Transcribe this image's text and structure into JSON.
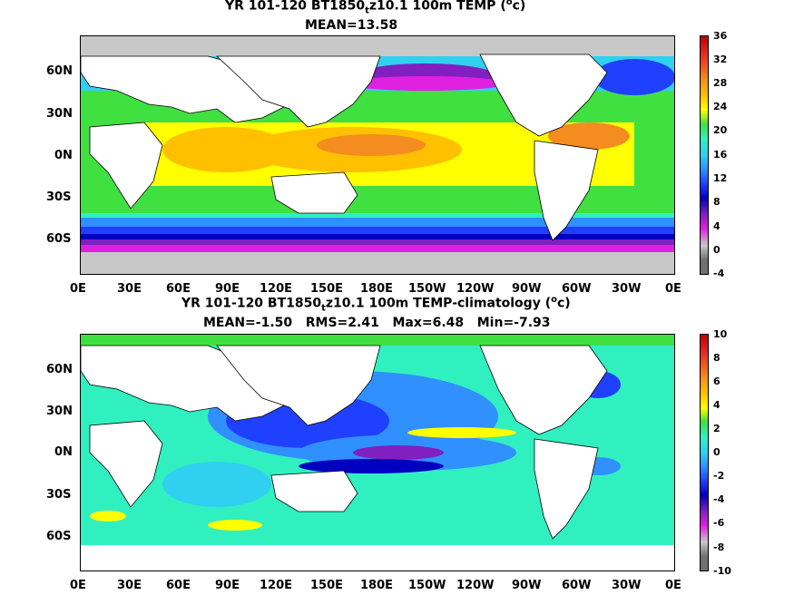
{
  "panel1": {
    "title_pre": "YR 101-120 BT1850",
    "title_sub": "t",
    "title_post": "z10.1 100m TEMP (",
    "title_sup": "o",
    "title_end": "c)",
    "stats": "MEAN=13.58",
    "lat_labels": [
      "60N",
      "30N",
      "0N",
      "30S",
      "60S"
    ],
    "lon_labels": [
      "0E",
      "30E",
      "60E",
      "90E",
      "120E",
      "150E",
      "180E",
      "150W",
      "120W",
      "90W",
      "60W",
      "30W",
      "0E"
    ],
    "colorbar_labels": [
      "36",
      "32",
      "28",
      "24",
      "20",
      "16",
      "12",
      "8",
      "4",
      "0",
      "-4"
    ],
    "colorbar_colors": [
      "#c00000",
      "#e02020",
      "#f05020",
      "#f58c20",
      "#ffc000",
      "#ffff00",
      "#40e040",
      "#30f0c0",
      "#30d0f0",
      "#3090ff",
      "#2040ff",
      "#0000c0",
      "#8020c0",
      "#e020e0",
      "#c8c8c8",
      "#707070"
    ]
  },
  "panel2": {
    "title_pre": "YR 101-120 BT1850",
    "title_sub": "t",
    "title_post": "z10.1 100m TEMP-climatology (",
    "title_sup": "o",
    "title_end": "c)",
    "stats": "MEAN=-1.50   RMS=2.41   Max=6.48   Min=-7.93",
    "lat_labels": [
      "60N",
      "30N",
      "0N",
      "30S",
      "60S"
    ],
    "lon_labels": [
      "0E",
      "30E",
      "60E",
      "90E",
      "120E",
      "150E",
      "180E",
      "150W",
      "120W",
      "90W",
      "60W",
      "30W",
      "0E"
    ],
    "colorbar_labels": [
      "10",
      "8",
      "6",
      "4",
      "2",
      "0",
      "-2",
      "-4",
      "-6",
      "-8",
      "-10"
    ],
    "colorbar_colors": [
      "#c00000",
      "#e02020",
      "#f05020",
      "#f58c20",
      "#ffc000",
      "#ffff00",
      "#40e040",
      "#30f0c0",
      "#30d0f0",
      "#3090ff",
      "#2040ff",
      "#0000c0",
      "#8020c0",
      "#e020e0",
      "#c8c8c8",
      "#707070"
    ]
  }
}
